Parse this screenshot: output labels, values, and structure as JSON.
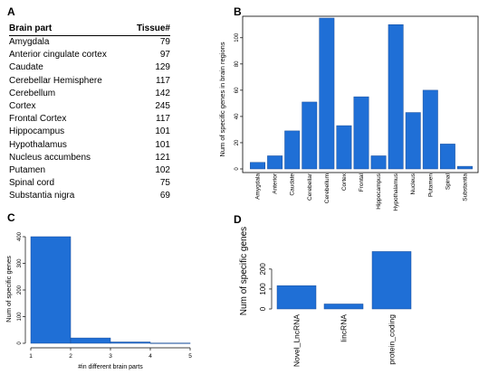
{
  "panels": {
    "a": "A",
    "b": "B",
    "c": "C",
    "d": "D"
  },
  "table_a": {
    "headers": [
      "Brain part",
      "Tissue#"
    ],
    "rows": [
      [
        "Amygdala",
        "79"
      ],
      [
        "Anterior cingulate cortex",
        "97"
      ],
      [
        "Caudate",
        "129"
      ],
      [
        "Cerebellar Hemisphere",
        "117"
      ],
      [
        "Cerebellum",
        "142"
      ],
      [
        "Cortex",
        "245"
      ],
      [
        "Frontal Cortex",
        "117"
      ],
      [
        "Hippocampus",
        "101"
      ],
      [
        "Hypothalamus",
        "101"
      ],
      [
        "Nucleus accumbens",
        "121"
      ],
      [
        "Putamen",
        "102"
      ],
      [
        "Spinal cord",
        "75"
      ],
      [
        "Substantia nigra",
        "69"
      ]
    ]
  },
  "chart_data": [
    {
      "id": "B",
      "type": "bar",
      "ylabel": "Num of specific genes in brain regions",
      "categories": [
        "Amygdala",
        "Anterior",
        "Caudate",
        "Cerebellar",
        "Cerebellum",
        "Cortex",
        "Frontal",
        "Hippocampus",
        "Hypothalamus",
        "Nucleus",
        "Putamen",
        "Spinal",
        "Substantia"
      ],
      "values": [
        5,
        10,
        29,
        51,
        115,
        33,
        55,
        10,
        110,
        43,
        60,
        19,
        2
      ],
      "ylim": [
        0,
        115
      ],
      "yticks": [
        0,
        20,
        40,
        60,
        80,
        100
      ],
      "color": "#1f6fd6"
    },
    {
      "id": "C",
      "type": "bar",
      "xlabel": "#in different brain parts",
      "ylabel": "Num of specific genes",
      "bins": [
        [
          1,
          2
        ],
        [
          2,
          3
        ],
        [
          3,
          4
        ],
        [
          4,
          5
        ]
      ],
      "values": [
        400,
        20,
        5,
        1
      ],
      "xticks": [
        1,
        2,
        3,
        4,
        5
      ],
      "yticks": [
        0,
        100,
        200,
        300,
        400
      ],
      "ylim": [
        0,
        400
      ],
      "color": "#1f6fd6"
    },
    {
      "id": "D",
      "type": "bar",
      "ylabel": "Num of specific genes",
      "categories": [
        "Novel_LncRNA",
        "lincRNA",
        "protein_coding"
      ],
      "values": [
        117,
        25,
        288
      ],
      "yticks": [
        0,
        100,
        200
      ],
      "ylim": [
        0,
        290
      ],
      "color": "#1f6fd6"
    }
  ]
}
